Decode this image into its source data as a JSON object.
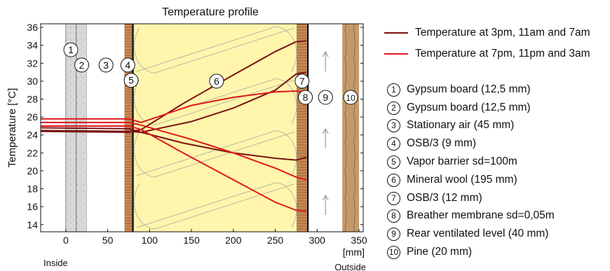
{
  "chart_data": {
    "type": "line",
    "title": "Temperature profile",
    "ylabel": "Temperature [°C]",
    "xlabel": "[mm]",
    "x_left_note": "Inside",
    "x_right_note": "Outside",
    "xlim": [
      -30,
      355
    ],
    "ylim": [
      13.2,
      36.4
    ],
    "xticks": [
      0,
      50,
      100,
      150,
      200,
      250,
      300,
      350
    ],
    "yticks": [
      14,
      16,
      18,
      20,
      22,
      24,
      26,
      28,
      30,
      32,
      34,
      36
    ],
    "series_colors": [
      "#7a1212",
      "#e0191b"
    ],
    "legend_lines": [
      {
        "label": "Temperature at 3pm, 11am and 7am",
        "color": "#7a1212"
      },
      {
        "label": "Temperature at 7pm, 11pm and 3am",
        "color": "#e0191b"
      }
    ],
    "series": [
      {
        "group": 0,
        "color": "#7a1212",
        "points": [
          [
            -30,
            24.4
          ],
          [
            75,
            24.3
          ],
          [
            90,
            24.6
          ],
          [
            140,
            27.5
          ],
          [
            200,
            30.7
          ],
          [
            250,
            33.3
          ],
          [
            275,
            34.4
          ],
          [
            287,
            34.5
          ]
        ]
      },
      {
        "group": 0,
        "color": "#7a1212",
        "points": [
          [
            -30,
            24.5
          ],
          [
            75,
            24.4
          ],
          [
            90,
            24.3
          ],
          [
            150,
            25.5
          ],
          [
            200,
            27.0
          ],
          [
            250,
            29.0
          ],
          [
            275,
            30.8
          ],
          [
            287,
            31.0
          ]
        ]
      },
      {
        "group": 0,
        "color": "#7a1212",
        "points": [
          [
            -30,
            24.8
          ],
          [
            75,
            24.7
          ],
          [
            90,
            24.3
          ],
          [
            140,
            23.1
          ],
          [
            200,
            22.0
          ],
          [
            250,
            21.4
          ],
          [
            275,
            21.2
          ],
          [
            287,
            21.5
          ]
        ]
      },
      {
        "group": 1,
        "color": "#e0191b",
        "points": [
          [
            -30,
            25.8
          ],
          [
            75,
            25.8
          ],
          [
            90,
            25.4
          ],
          [
            150,
            27.3
          ],
          [
            200,
            28.2
          ],
          [
            250,
            28.8
          ],
          [
            275,
            28.9
          ],
          [
            287,
            28.7
          ]
        ]
      },
      {
        "group": 1,
        "color": "#e0191b",
        "points": [
          [
            -30,
            25.4
          ],
          [
            75,
            25.4
          ],
          [
            90,
            25.1
          ],
          [
            150,
            23.5
          ],
          [
            200,
            22.0
          ],
          [
            250,
            20.3
          ],
          [
            275,
            19.3
          ],
          [
            287,
            19.0
          ]
        ]
      },
      {
        "group": 1,
        "color": "#e0191b",
        "points": [
          [
            -30,
            25.0
          ],
          [
            75,
            25.0
          ],
          [
            90,
            24.6
          ],
          [
            140,
            22.0
          ],
          [
            200,
            19.0
          ],
          [
            250,
            16.5
          ],
          [
            275,
            15.6
          ],
          [
            287,
            15.5
          ]
        ]
      }
    ],
    "layers": [
      {
        "num": "1",
        "label": "Gypsum board (12,5 mm)",
        "x0": 0,
        "x1": 12.5,
        "fill": "#d9d9d9",
        "pattern": "speckle"
      },
      {
        "num": "2",
        "label": "Gypsum board (12,5 mm)",
        "x0": 12.5,
        "x1": 25,
        "fill": "#d9d9d9",
        "pattern": "speckle"
      },
      {
        "num": "3",
        "label": "Stationary air (45 mm)",
        "x0": 25,
        "x1": 70,
        "fill": "#ffffff",
        "pattern": "none"
      },
      {
        "num": "4",
        "label": "OSB/3 (9 mm)",
        "x0": 70,
        "x1": 79,
        "fill": "#c98a55",
        "pattern": "osb"
      },
      {
        "num": "5",
        "label": "Vapor barrier sd=100m",
        "x0": 79,
        "x1": 81,
        "fill": "#111111",
        "pattern": "none"
      },
      {
        "num": "6",
        "label": "Mineral wool (195 mm)",
        "x0": 81,
        "x1": 276,
        "fill": "#fff5ad",
        "pattern": "wool"
      },
      {
        "num": "7",
        "label": "OSB/3 (12 mm)",
        "x0": 276,
        "x1": 288,
        "fill": "#c98a55",
        "pattern": "osb"
      },
      {
        "num": "8",
        "label": "Breather membrane sd=0,05m",
        "x0": 288,
        "x1": 290,
        "fill": "#111111",
        "pattern": "none"
      },
      {
        "num": "9",
        "label": "Rear ventilated level (40 mm)",
        "x0": 290,
        "x1": 330,
        "fill": "#ffffff",
        "pattern": "arrows"
      },
      {
        "num": "10",
        "label": "Pine (20 mm)",
        "x0": 330,
        "x1": 350,
        "fill": "#c49a6c",
        "pattern": "wood"
      }
    ],
    "markers": [
      {
        "num": "1",
        "x": 6,
        "y": 33.5
      },
      {
        "num": "2",
        "x": 19,
        "y": 31.8
      },
      {
        "num": "3",
        "x": 48,
        "y": 31.8
      },
      {
        "num": "4",
        "x": 74,
        "y": 31.8
      },
      {
        "num": "5",
        "x": 78,
        "y": 30.1
      },
      {
        "num": "6",
        "x": 180,
        "y": 30.0
      },
      {
        "num": "7",
        "x": 282,
        "y": 30.0
      },
      {
        "num": "8",
        "x": 286,
        "y": 28.2
      },
      {
        "num": "9",
        "x": 310,
        "y": 28.2
      },
      {
        "num": "10",
        "x": 340,
        "y": 28.2
      }
    ]
  }
}
